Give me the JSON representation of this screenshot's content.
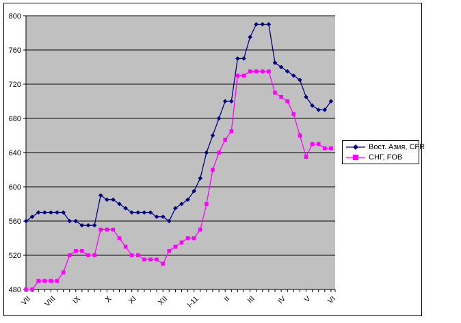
{
  "chart_data": {
    "type": "line",
    "title": "",
    "xlabel": "",
    "ylabel": "",
    "x_labels": [
      "VII",
      "VIII",
      "IX",
      "X",
      "XI",
      "XII",
      "I-11",
      "II",
      "III",
      "IV",
      "V",
      "VI"
    ],
    "x_label_indices": [
      0,
      4,
      8,
      13,
      17,
      22,
      27,
      32,
      36,
      41,
      45,
      49
    ],
    "ylim": [
      480,
      800
    ],
    "yticks": [
      480,
      520,
      560,
      600,
      640,
      680,
      720,
      760,
      800
    ],
    "grid": "horizontal",
    "gridline_color": "#000000",
    "plot_bg": "#C0C0C0",
    "chart_bg": "#FFFFFF",
    "legend_position": "right",
    "series": [
      {
        "name": "Вост. Азия, CFR",
        "color": "#000080",
        "marker": "diamond",
        "values": [
          560,
          565,
          570,
          570,
          570,
          570,
          570,
          560,
          560,
          555,
          555,
          555,
          590,
          585,
          585,
          580,
          575,
          570,
          570,
          570,
          570,
          565,
          565,
          560,
          575,
          580,
          585,
          595,
          610,
          640,
          660,
          680,
          700,
          700,
          750,
          750,
          775,
          790,
          790,
          790,
          745,
          740,
          735,
          730,
          725,
          705,
          695,
          690,
          690,
          700
        ]
      },
      {
        "name": "СНГ, FOB",
        "color": "#FF00FF",
        "marker": "square",
        "values": [
          480,
          480,
          490,
          490,
          490,
          490,
          500,
          520,
          525,
          525,
          520,
          520,
          550,
          550,
          550,
          540,
          530,
          520,
          520,
          515,
          515,
          515,
          510,
          525,
          530,
          535,
          540,
          540,
          550,
          580,
          620,
          640,
          655,
          665,
          730,
          730,
          735,
          735,
          735,
          735,
          710,
          705,
          700,
          685,
          660,
          635,
          650,
          650,
          645,
          645
        ]
      }
    ]
  }
}
